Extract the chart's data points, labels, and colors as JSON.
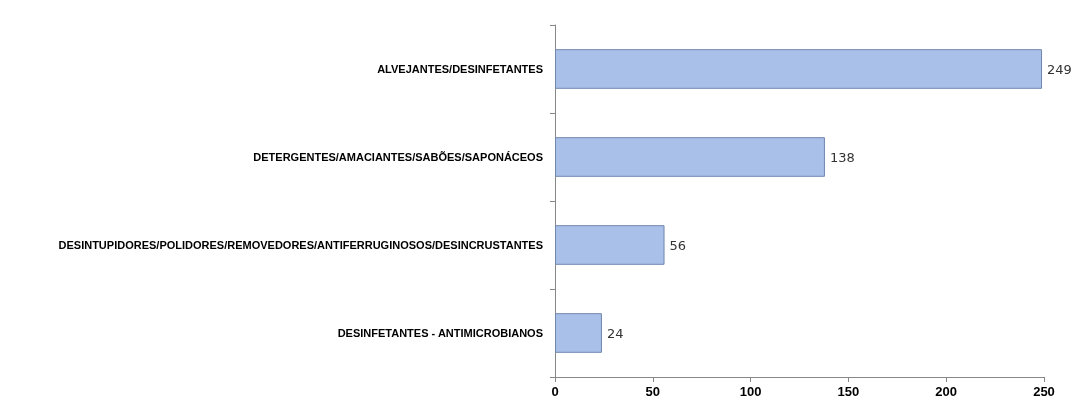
{
  "chart_data": {
    "type": "bar",
    "orientation": "horizontal",
    "categories": [
      "ALVEJANTES/DESINFETANTES",
      "DETERGENTES/AMACIANTES/SABÕES/SAPONÁCEOS",
      "DESINTUPIDORES/POLIDORES/REMOVEDORES/ANTIFERRUGINOSOS/DESINCRUSTANTES",
      "DESINFETANTES - ANTIMICROBIANOS"
    ],
    "values": [
      249,
      138,
      56,
      24
    ],
    "color": "#a9c0e8",
    "data_labels": true,
    "xlim": [
      0,
      250
    ],
    "xticks": [
      0,
      50,
      100,
      150,
      200,
      250
    ],
    "grid": false
  }
}
